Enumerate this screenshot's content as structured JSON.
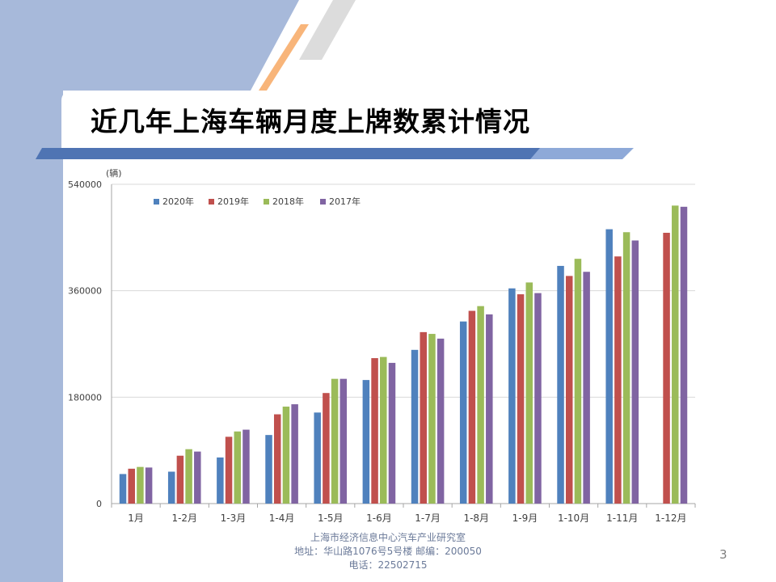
{
  "slide": {
    "title": "近几年上海车辆月度上牌数累计情况",
    "page_number": "3",
    "footer": {
      "line1": "上海市经济信息中心汽车产业研究室",
      "line2": "地址：华山路1076号5号楼    邮编：200050",
      "line3": "电话：22502715"
    },
    "colors": {
      "side_band": "#a7b9da",
      "accent_stripe": "#f8b57a",
      "grey_stripe": "#dcdcdc",
      "title_bar": "#4f74b3"
    }
  },
  "chart_data": {
    "type": "bar",
    "ylabel": "(辆)",
    "ylim": [
      0,
      540000
    ],
    "yticks": [
      "0",
      "180000",
      "360000",
      "540000"
    ],
    "categories": [
      "1月",
      "1-2月",
      "1-3月",
      "1-4月",
      "1-5月",
      "1-6月",
      "1-7月",
      "1-8月",
      "1-9月",
      "1-10月",
      "1-11月",
      "1-12月"
    ],
    "legend_position": "top-left",
    "grid": true,
    "series": [
      {
        "name": "2020年",
        "color": "#4f81bd",
        "values": [
          50000,
          54000,
          78000,
          116000,
          154000,
          209000,
          260000,
          308000,
          364000,
          402000,
          464000,
          null
        ]
      },
      {
        "name": "2019年",
        "color": "#c0504d",
        "values": [
          59000,
          81000,
          113000,
          151000,
          187000,
          246000,
          290000,
          326000,
          354000,
          385000,
          418000,
          458000
        ]
      },
      {
        "name": "2018年",
        "color": "#9bbb59",
        "values": [
          62000,
          92000,
          122000,
          164000,
          211000,
          248000,
          287000,
          334000,
          374000,
          414000,
          459000,
          504000
        ]
      },
      {
        "name": "2017年",
        "color": "#8064a2",
        "values": [
          61000,
          88000,
          125000,
          168000,
          211000,
          238000,
          279000,
          320000,
          356000,
          392000,
          445000,
          502000
        ]
      }
    ]
  }
}
